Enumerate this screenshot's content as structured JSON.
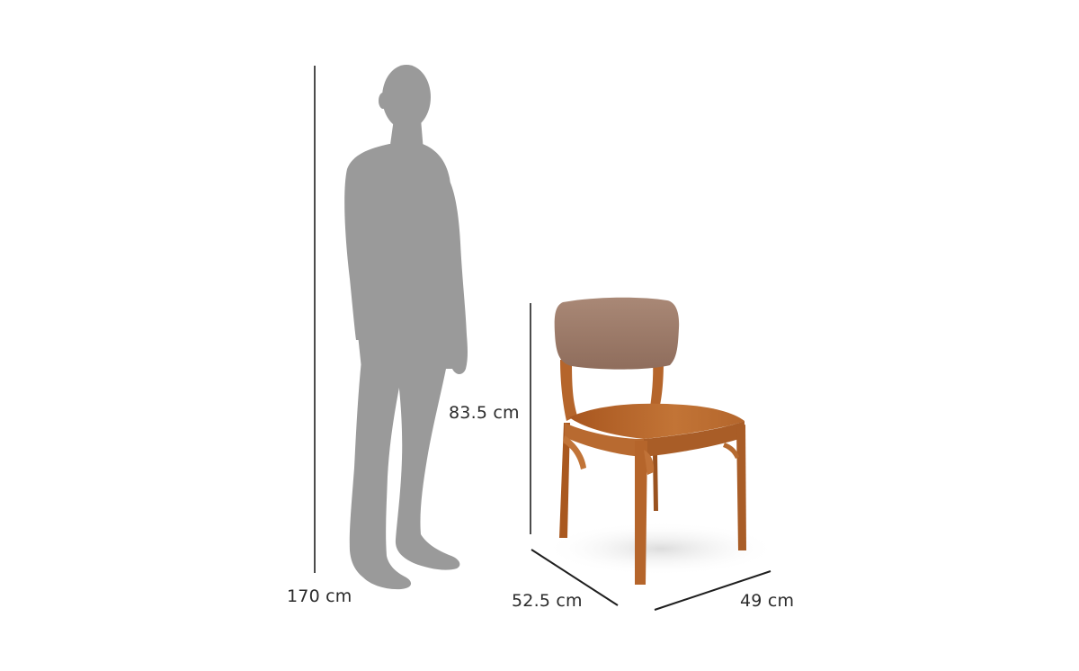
{
  "colors": {
    "background": "#ffffff",
    "silhouette": "#9a9a9a",
    "dimension_line": "#1f1f1f",
    "wood": "#b5652b",
    "wood_dark": "#8e4a1c",
    "fabric": "#9c7a68",
    "label": "#2b2b2b"
  },
  "figure": {
    "person_silhouette_icon": "person-silhouette-icon",
    "chair_icon": "wooden-chair-icon"
  },
  "dimensions": {
    "person_height": "170 cm",
    "chair_height": "83.5 cm",
    "chair_depth": "52.5 cm",
    "chair_width": "49 cm"
  }
}
